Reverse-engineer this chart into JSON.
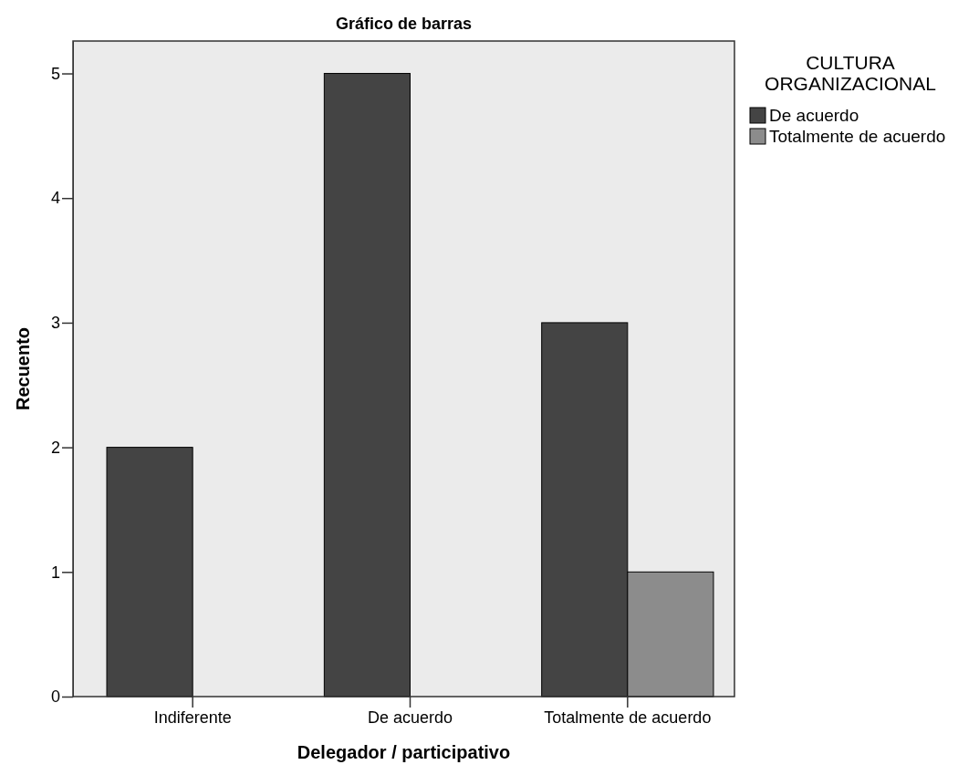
{
  "chart_data": {
    "type": "bar",
    "title": "Gráfico de barras",
    "xlabel": "Delegador / participativo",
    "ylabel": "Recuento",
    "legend_title": "CULTURA\nORGANIZACIONAL",
    "categories": [
      "Indiferente",
      "De acuerdo",
      "Totalmente de acuerdo"
    ],
    "series": [
      {
        "name": "De acuerdo",
        "color": "#444444",
        "values": [
          2,
          5,
          3
        ]
      },
      {
        "name": "Totalmente de acuerdo",
        "color": "#8c8c8c",
        "values": [
          null,
          null,
          1
        ]
      }
    ],
    "ylim": [
      0,
      5.26
    ],
    "yticks": [
      0,
      1,
      2,
      3,
      4,
      5
    ],
    "grid": false,
    "legend": "top right"
  }
}
